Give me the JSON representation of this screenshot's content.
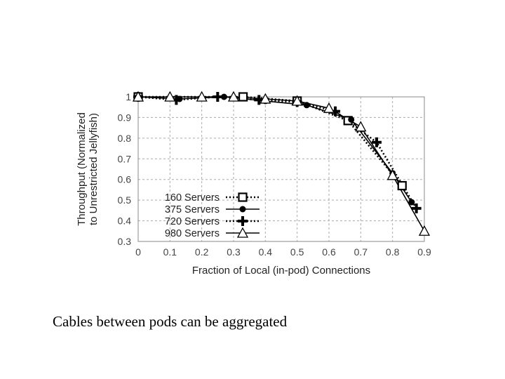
{
  "caption": "Cables between pods can be aggregated",
  "chart_data": {
    "type": "line",
    "xlabel": "Fraction of Local (in-pod) Connections",
    "ylabel_lines": [
      "Throughput (Normalized",
      "to Unrestricted Jellyfish)"
    ],
    "xlim": [
      0,
      0.9
    ],
    "ylim": [
      0.3,
      1.0
    ],
    "xticks": [
      "0",
      "0.1",
      "0.2",
      "0.3",
      "0.4",
      "0.5",
      "0.6",
      "0.7",
      "0.8",
      "0.9"
    ],
    "yticks": [
      "0.3",
      "0.4",
      "0.5",
      "0.6",
      "0.7",
      "0.8",
      "0.9",
      "1"
    ],
    "grid": true,
    "legend_position": "bottom-left",
    "series": [
      {
        "name": "160 Servers",
        "marker": "square",
        "linestyle": "dotted",
        "points": [
          [
            0,
            1.0
          ],
          [
            0.33,
            1.0
          ],
          [
            0.5,
            0.98
          ],
          [
            0.66,
            0.885
          ],
          [
            0.83,
            0.57
          ]
        ]
      },
      {
        "name": "375 Servers",
        "marker": "circle",
        "linestyle": "solid",
        "points": [
          [
            0,
            1.0
          ],
          [
            0.13,
            0.99
          ],
          [
            0.27,
            1.0
          ],
          [
            0.4,
            0.98
          ],
          [
            0.53,
            0.96
          ],
          [
            0.67,
            0.89
          ],
          [
            0.8,
            0.63
          ],
          [
            0.86,
            0.49
          ]
        ]
      },
      {
        "name": "720 Servers",
        "marker": "plus",
        "linestyle": "dotted",
        "points": [
          [
            0,
            1.0
          ],
          [
            0.12,
            0.985
          ],
          [
            0.25,
            1.0
          ],
          [
            0.38,
            0.985
          ],
          [
            0.5,
            0.975
          ],
          [
            0.62,
            0.93
          ],
          [
            0.75,
            0.78
          ],
          [
            0.875,
            0.46
          ]
        ]
      },
      {
        "name": "980 Servers",
        "marker": "triangle",
        "linestyle": "solid",
        "points": [
          [
            0,
            1.0
          ],
          [
            0.1,
            1.0
          ],
          [
            0.2,
            1.0
          ],
          [
            0.3,
            1.0
          ],
          [
            0.4,
            0.99
          ],
          [
            0.5,
            0.98
          ],
          [
            0.6,
            0.945
          ],
          [
            0.7,
            0.855
          ],
          [
            0.8,
            0.62
          ],
          [
            0.9,
            0.35
          ]
        ]
      }
    ]
  }
}
